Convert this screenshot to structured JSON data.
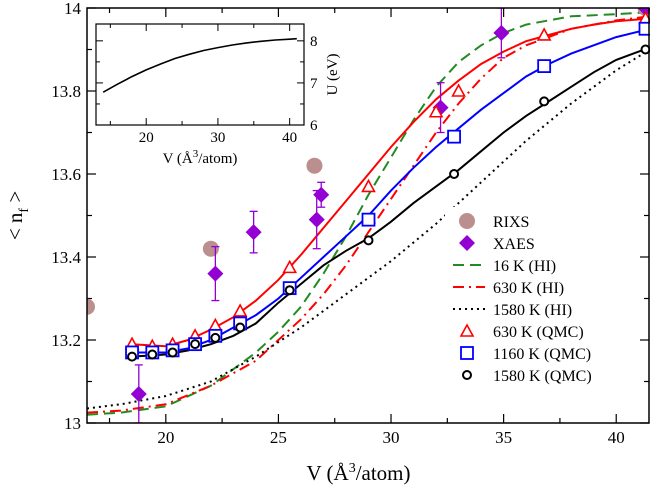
{
  "chart_data": [
    {
      "type": "line",
      "xlabel": "V (Å³/atom)",
      "xlabel_parts": {
        "main": "V (Å",
        "sup": "3",
        "rest": "/atom)"
      },
      "ylabel": "< n_f >",
      "ylabel_parts": {
        "main": "< n",
        "sub": "f",
        "rest": " >"
      },
      "xlim": [
        16.5,
        41.5
      ],
      "ylim": [
        13.0,
        14.0
      ],
      "xticks": [
        20,
        25,
        30,
        35,
        40
      ],
      "yticks": [
        13.0,
        13.2,
        13.4,
        13.6,
        13.8,
        14.0
      ],
      "ytick_labels": [
        "13",
        "13.2",
        "13.4",
        "13.6",
        "13.8",
        "14"
      ],
      "legend_position": "bottom-right",
      "series": [
        {
          "name": "RIXS",
          "kind": "marker",
          "marker": "filled-circle",
          "color": "#bc8f8f",
          "x": [
            16.5,
            22.0,
            26.6,
            41.3
          ],
          "y": [
            13.28,
            13.42,
            13.62,
            14.0
          ]
        },
        {
          "name": "XAES",
          "kind": "marker",
          "marker": "filled-diamond",
          "color": "#9400d3",
          "x": [
            18.8,
            22.2,
            23.9,
            26.7,
            26.9,
            32.2,
            34.9,
            41.3
          ],
          "y": [
            13.07,
            13.36,
            13.46,
            13.49,
            13.55,
            13.76,
            13.94,
            14.0
          ],
          "err": [
            0.07,
            0.065,
            0.05,
            0.07,
            0.03,
            0.06,
            0.06,
            0.03
          ]
        },
        {
          "name": "16 K (HI)",
          "kind": "line",
          "dash": "dashed",
          "color": "#228b22",
          "x": [
            16.5,
            18,
            20,
            22,
            24,
            25,
            26,
            27,
            28,
            29,
            30,
            31,
            32,
            33,
            34,
            35,
            36,
            37,
            38,
            40,
            41.5
          ],
          "y": [
            13.02,
            13.025,
            13.04,
            13.09,
            13.17,
            13.22,
            13.28,
            13.36,
            13.45,
            13.55,
            13.64,
            13.73,
            13.81,
            13.87,
            13.91,
            13.94,
            13.96,
            13.97,
            13.98,
            13.985,
            13.99
          ]
        },
        {
          "name": "630 K (HI)",
          "kind": "line",
          "dash": "dash-dot",
          "color": "#ff0000",
          "x": [
            16.5,
            18,
            20,
            22,
            24,
            25,
            26,
            27,
            28,
            29,
            30,
            31,
            32,
            33,
            34,
            35,
            36,
            37,
            38,
            40,
            41.5
          ],
          "y": [
            13.025,
            13.03,
            13.045,
            13.09,
            13.15,
            13.2,
            13.25,
            13.31,
            13.38,
            13.46,
            13.54,
            13.62,
            13.7,
            13.77,
            13.83,
            13.88,
            13.91,
            13.93,
            13.95,
            13.97,
            13.98
          ]
        },
        {
          "name": "1580 K (HI)",
          "kind": "line",
          "dash": "dotted",
          "color": "#000000",
          "x": [
            16.5,
            18,
            20,
            22,
            24,
            26,
            28,
            30,
            32,
            34,
            36,
            38,
            40,
            41.5
          ],
          "y": [
            13.035,
            13.045,
            13.065,
            13.1,
            13.16,
            13.23,
            13.31,
            13.39,
            13.48,
            13.58,
            13.68,
            13.77,
            13.85,
            13.9
          ]
        },
        {
          "name": "630 K (QMC)",
          "kind": "line+marker",
          "marker": "open-triangle",
          "color": "#ff0000",
          "x": [
            18.5,
            19.4,
            20.3,
            21.3,
            22.2,
            23.3,
            25.5,
            29.0,
            32.0,
            33.0,
            36.8,
            41.3
          ],
          "y": [
            13.19,
            13.185,
            13.19,
            13.21,
            13.235,
            13.27,
            13.375,
            13.57,
            13.75,
            13.8,
            13.935,
            13.975
          ],
          "curve_x": [
            18.5,
            20,
            21,
            22,
            23,
            24,
            25,
            26,
            27,
            28,
            29,
            30,
            31,
            32,
            33,
            34,
            35,
            36,
            37,
            38,
            39,
            40,
            41.5
          ],
          "curve_y": [
            13.19,
            13.185,
            13.2,
            13.225,
            13.255,
            13.295,
            13.345,
            13.405,
            13.47,
            13.535,
            13.6,
            13.665,
            13.725,
            13.78,
            13.825,
            13.865,
            13.895,
            13.92,
            13.935,
            13.95,
            13.96,
            13.968,
            13.975
          ]
        },
        {
          "name": "1160 K (QMC)",
          "kind": "line+marker",
          "marker": "open-square",
          "color": "#0000ff",
          "x": [
            18.5,
            19.4,
            20.3,
            21.3,
            22.2,
            23.3,
            25.5,
            29.0,
            32.8,
            36.8,
            41.3
          ],
          "y": [
            13.17,
            13.17,
            13.175,
            13.19,
            13.21,
            13.24,
            13.325,
            13.49,
            13.69,
            13.86,
            13.95
          ],
          "curve_x": [
            18.5,
            20,
            21,
            22,
            23,
            24,
            25,
            26,
            27,
            28,
            29,
            30,
            31,
            32,
            33,
            34,
            35,
            36,
            37,
            38,
            39,
            40,
            41.5
          ],
          "curve_y": [
            13.17,
            13.17,
            13.18,
            13.2,
            13.23,
            13.26,
            13.3,
            13.35,
            13.4,
            13.45,
            13.5,
            13.56,
            13.615,
            13.665,
            13.71,
            13.755,
            13.795,
            13.835,
            13.865,
            13.89,
            13.91,
            13.93,
            13.95
          ]
        },
        {
          "name": "1580 K (QMC)",
          "kind": "line+marker",
          "marker": "open-circle",
          "color": "#000000",
          "x": [
            18.5,
            19.4,
            20.3,
            21.3,
            22.2,
            23.3,
            25.5,
            29.0,
            32.8,
            36.8,
            41.3
          ],
          "y": [
            13.16,
            13.165,
            13.17,
            13.19,
            13.205,
            13.23,
            13.32,
            13.44,
            13.6,
            13.775,
            13.9
          ],
          "curve_x": [
            18.5,
            20,
            21,
            22,
            23,
            24,
            25,
            26,
            27,
            28,
            29,
            30,
            31,
            32,
            33,
            34,
            35,
            36,
            37,
            38,
            39,
            40,
            41.5
          ],
          "curve_y": [
            13.16,
            13.165,
            13.175,
            13.19,
            13.21,
            13.24,
            13.29,
            13.335,
            13.38,
            13.415,
            13.445,
            13.485,
            13.53,
            13.57,
            13.61,
            13.655,
            13.7,
            13.74,
            13.775,
            13.81,
            13.845,
            13.875,
            13.905
          ]
        }
      ]
    },
    {
      "type": "line",
      "panel": "inset",
      "xlabel": "V (Å³/atom)",
      "xlabel_parts": {
        "main": "V (Å",
        "sup": "3",
        "rest": "/atom)"
      },
      "ylabel": "U (eV)",
      "xlim": [
        13,
        42
      ],
      "ylim": [
        6,
        8.4
      ],
      "xticks": [
        20,
        30,
        40
      ],
      "yticks": [
        6,
        7,
        8
      ],
      "series": [
        {
          "color": "#000000",
          "x": [
            14,
            16,
            18,
            20,
            22,
            24,
            26,
            28,
            30,
            32,
            34,
            36,
            38,
            40,
            41
          ],
          "y": [
            6.78,
            6.97,
            7.15,
            7.31,
            7.45,
            7.58,
            7.68,
            7.77,
            7.84,
            7.9,
            7.95,
            7.99,
            8.02,
            8.04,
            8.05
          ]
        }
      ]
    }
  ]
}
